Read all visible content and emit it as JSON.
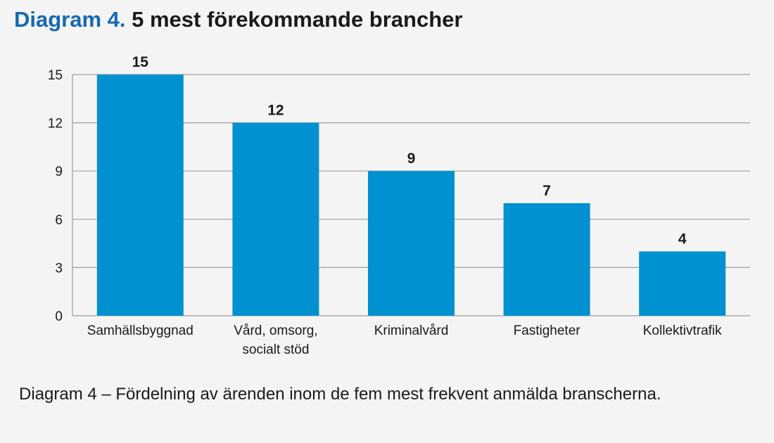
{
  "title": {
    "prefix": "Diagram 4.",
    "main": "5 mest förekommande brancher"
  },
  "caption": "Diagram 4 – Fördelning av ärenden inom de fem mest frekvent anmälda branscherna.",
  "colors": {
    "bar": "#0091d0",
    "grid": "#a0a0a0",
    "prefix": "#1669b3",
    "text": "#1a1a1a"
  },
  "chart_data": {
    "type": "bar",
    "title": "5 mest förekommande brancher",
    "xlabel": "",
    "ylabel": "",
    "categories": [
      [
        "Samhällsbyggnad"
      ],
      [
        "Vård, omsorg,",
        "socialt stöd"
      ],
      [
        "Kriminalvård"
      ],
      [
        "Fastigheter"
      ],
      [
        "Kollektivtrafik"
      ]
    ],
    "values": [
      15,
      12,
      9,
      7,
      4
    ],
    "data_labels": [
      "15",
      "12",
      "9",
      "7",
      "4"
    ],
    "yticks": [
      0,
      3,
      6,
      9,
      12,
      15
    ],
    "ylim": [
      0,
      15
    ],
    "grid": true,
    "legend": "none"
  }
}
